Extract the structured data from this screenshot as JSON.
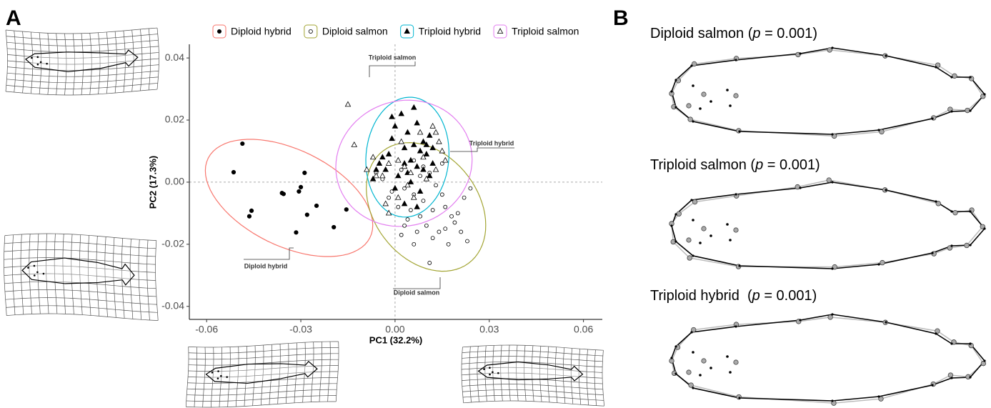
{
  "panel_label_a": "A",
  "chart_data": {
    "type": "scatter",
    "xlabel": "PC1 (32.2%)",
    "ylabel": "PC2 (17.3%)",
    "xlim": [
      -0.0655,
      0.066
    ],
    "ylim": [
      -0.0442,
      0.0444
    ],
    "xticks": [
      -0.06,
      -0.03,
      {
        "value": 0,
        "label": "0.00"
      },
      0.03,
      0.06
    ],
    "yticks": [
      -0.04,
      -0.02,
      {
        "value": 0,
        "label": "0.00"
      },
      0.02,
      0.04
    ],
    "series": [
      {
        "name": "Diploid hybrid",
        "color": "#f8766d",
        "marker": "filled-circle",
        "values": [
          [
            -0.0486,
            0.0124
          ],
          [
            -0.0514,
            0.0032
          ],
          [
            -0.0457,
            -0.0092
          ],
          [
            -0.0464,
            -0.011
          ],
          [
            -0.036,
            -0.0035
          ],
          [
            -0.0355,
            -0.0038
          ],
          [
            -0.0288,
            0.003
          ],
          [
            -0.03,
            -0.0016
          ],
          [
            -0.0306,
            -0.003
          ],
          [
            -0.025,
            -0.0076
          ],
          [
            -0.028,
            -0.0105
          ],
          [
            -0.0315,
            -0.0162
          ],
          [
            -0.0195,
            -0.0145
          ],
          [
            -0.0155,
            -0.0088
          ]
        ]
      },
      {
        "name": "Diploid salmon",
        "color": "#a3a534",
        "marker": "open-circle",
        "values": [
          [
            0.003,
            -0.002
          ],
          [
            0.006,
            -0.004
          ],
          [
            0.009,
            -0.006
          ],
          [
            0.012,
            -0.009
          ],
          [
            0.015,
            -0.004
          ],
          [
            0.018,
            -0.011
          ],
          [
            0.021,
            -0.016
          ],
          [
            0.022,
            -0.005
          ],
          [
            0.023,
            -0.019
          ],
          [
            0.014,
            -0.016
          ],
          [
            0.01,
            -0.014
          ],
          [
            0.007,
            -0.016
          ],
          [
            0.004,
            -0.012
          ],
          [
            0.001,
            -0.008
          ],
          [
            -0.002,
            -0.005
          ],
          [
            -0.004,
            0.001
          ],
          [
            -0.006,
            0.003
          ],
          [
            0.002,
            0.004
          ],
          [
            0.008,
            0.002
          ],
          [
            0.011,
            0.003
          ],
          [
            0.013,
            -0.001
          ],
          [
            0.016,
            -0.008
          ],
          [
            0.019,
            -0.013
          ],
          [
            0.005,
            -0.009
          ],
          [
            0.017,
            -0.02
          ],
          [
            0.011,
            -0.026
          ],
          [
            0.006,
            -0.02
          ],
          [
            0.016,
            -0.015
          ],
          [
            0.003,
            -0.014
          ],
          [
            0.02,
            -0.01
          ],
          [
            0.008,
            -0.011
          ],
          [
            0.012,
            -0.018
          ],
          [
            -0.001,
            -0.003
          ],
          [
            0.009,
            0.005
          ],
          [
            0.024,
            -0.002
          ],
          [
            0.015,
            0.006
          ],
          [
            0.002,
            -0.017
          ],
          [
            0.006,
            0.007
          ]
        ]
      },
      {
        "name": "Triploid hybrid",
        "color": "#00b5d0",
        "marker": "filled-triangle",
        "values": [
          [
            -0.001,
            0.021
          ],
          [
            0.002,
            0.022
          ],
          [
            0.0,
            0.018
          ],
          [
            0.006,
            0.024
          ],
          [
            0.004,
            0.016
          ],
          [
            0.007,
            0.019
          ],
          [
            0.009,
            0.013
          ],
          [
            0.011,
            0.015
          ],
          [
            0.012,
            0.011
          ],
          [
            0.006,
            0.012
          ],
          [
            0.003,
            0.011
          ],
          [
            0.008,
            0.01
          ],
          [
            0.01,
            0.009
          ],
          [
            -0.004,
            0.008
          ],
          [
            -0.005,
            0.006
          ],
          [
            -0.006,
            0.004
          ],
          [
            -0.003,
            0.004
          ],
          [
            0.001,
            0.002
          ],
          [
            0.003,
            0.006
          ],
          [
            0.005,
            0.007
          ],
          [
            0.007,
            0.005
          ],
          [
            0.009,
            0.004
          ],
          [
            0.011,
            0.002
          ],
          [
            0.012,
            0.006
          ],
          [
            -0.007,
            0.001
          ],
          [
            0.0,
            -0.002
          ],
          [
            0.005,
            0.0
          ],
          [
            0.008,
            -0.003
          ],
          [
            0.003,
            -0.007
          ],
          [
            0.007,
            -0.008
          ],
          [
            -0.002,
            0.009
          ],
          [
            0.01,
            0.012
          ],
          [
            0.004,
            0.003
          ],
          [
            -0.001,
            0.014
          ]
        ]
      },
      {
        "name": "Triploid salmon",
        "color": "#e37ef0",
        "marker": "open-triangle",
        "values": [
          [
            -0.015,
            0.025
          ],
          [
            -0.013,
            0.012
          ],
          [
            -0.007,
            0.008
          ],
          [
            -0.009,
            0.004
          ],
          [
            -0.006,
            0.002
          ],
          [
            -0.002,
            0.006
          ],
          [
            0.001,
            0.007
          ],
          [
            0.003,
            0.005
          ],
          [
            0.005,
            0.003
          ],
          [
            0.01,
            0.001
          ],
          [
            0.013,
            0.004
          ],
          [
            0.015,
            0.01
          ],
          [
            0.013,
            0.016
          ],
          [
            0.014,
            0.013
          ],
          [
            0.012,
            0.018
          ],
          [
            0.008,
            0.016
          ],
          [
            0.004,
            -0.001
          ],
          [
            0.001,
            -0.005
          ],
          [
            -0.003,
            -0.007
          ],
          [
            -0.002,
            -0.01
          ],
          [
            0.006,
            -0.005
          ],
          [
            0.009,
            0.008
          ],
          [
            0.016,
            0.007
          ],
          [
            -0.004,
            0.002
          ],
          [
            0.002,
            0.013
          ]
        ]
      }
    ],
    "ellipses": true,
    "zero_lines": true,
    "legend": "top",
    "annotations": [
      "Triploid salmon",
      "Triploid hybrid",
      "Diploid hybrid",
      "Diploid salmon"
    ]
  },
  "panel_b": {
    "label": "B",
    "comparisons": [
      {
        "name": "Diploid salmon (",
        "stat": "p",
        "result": " = 0.001)"
      },
      {
        "name": "Triploid salmon (",
        "stat": "p",
        "result": " = 0.001)"
      },
      {
        "name": "Triploid hybrid  (",
        "stat": "p",
        "result": " = 0.001)"
      }
    ]
  }
}
